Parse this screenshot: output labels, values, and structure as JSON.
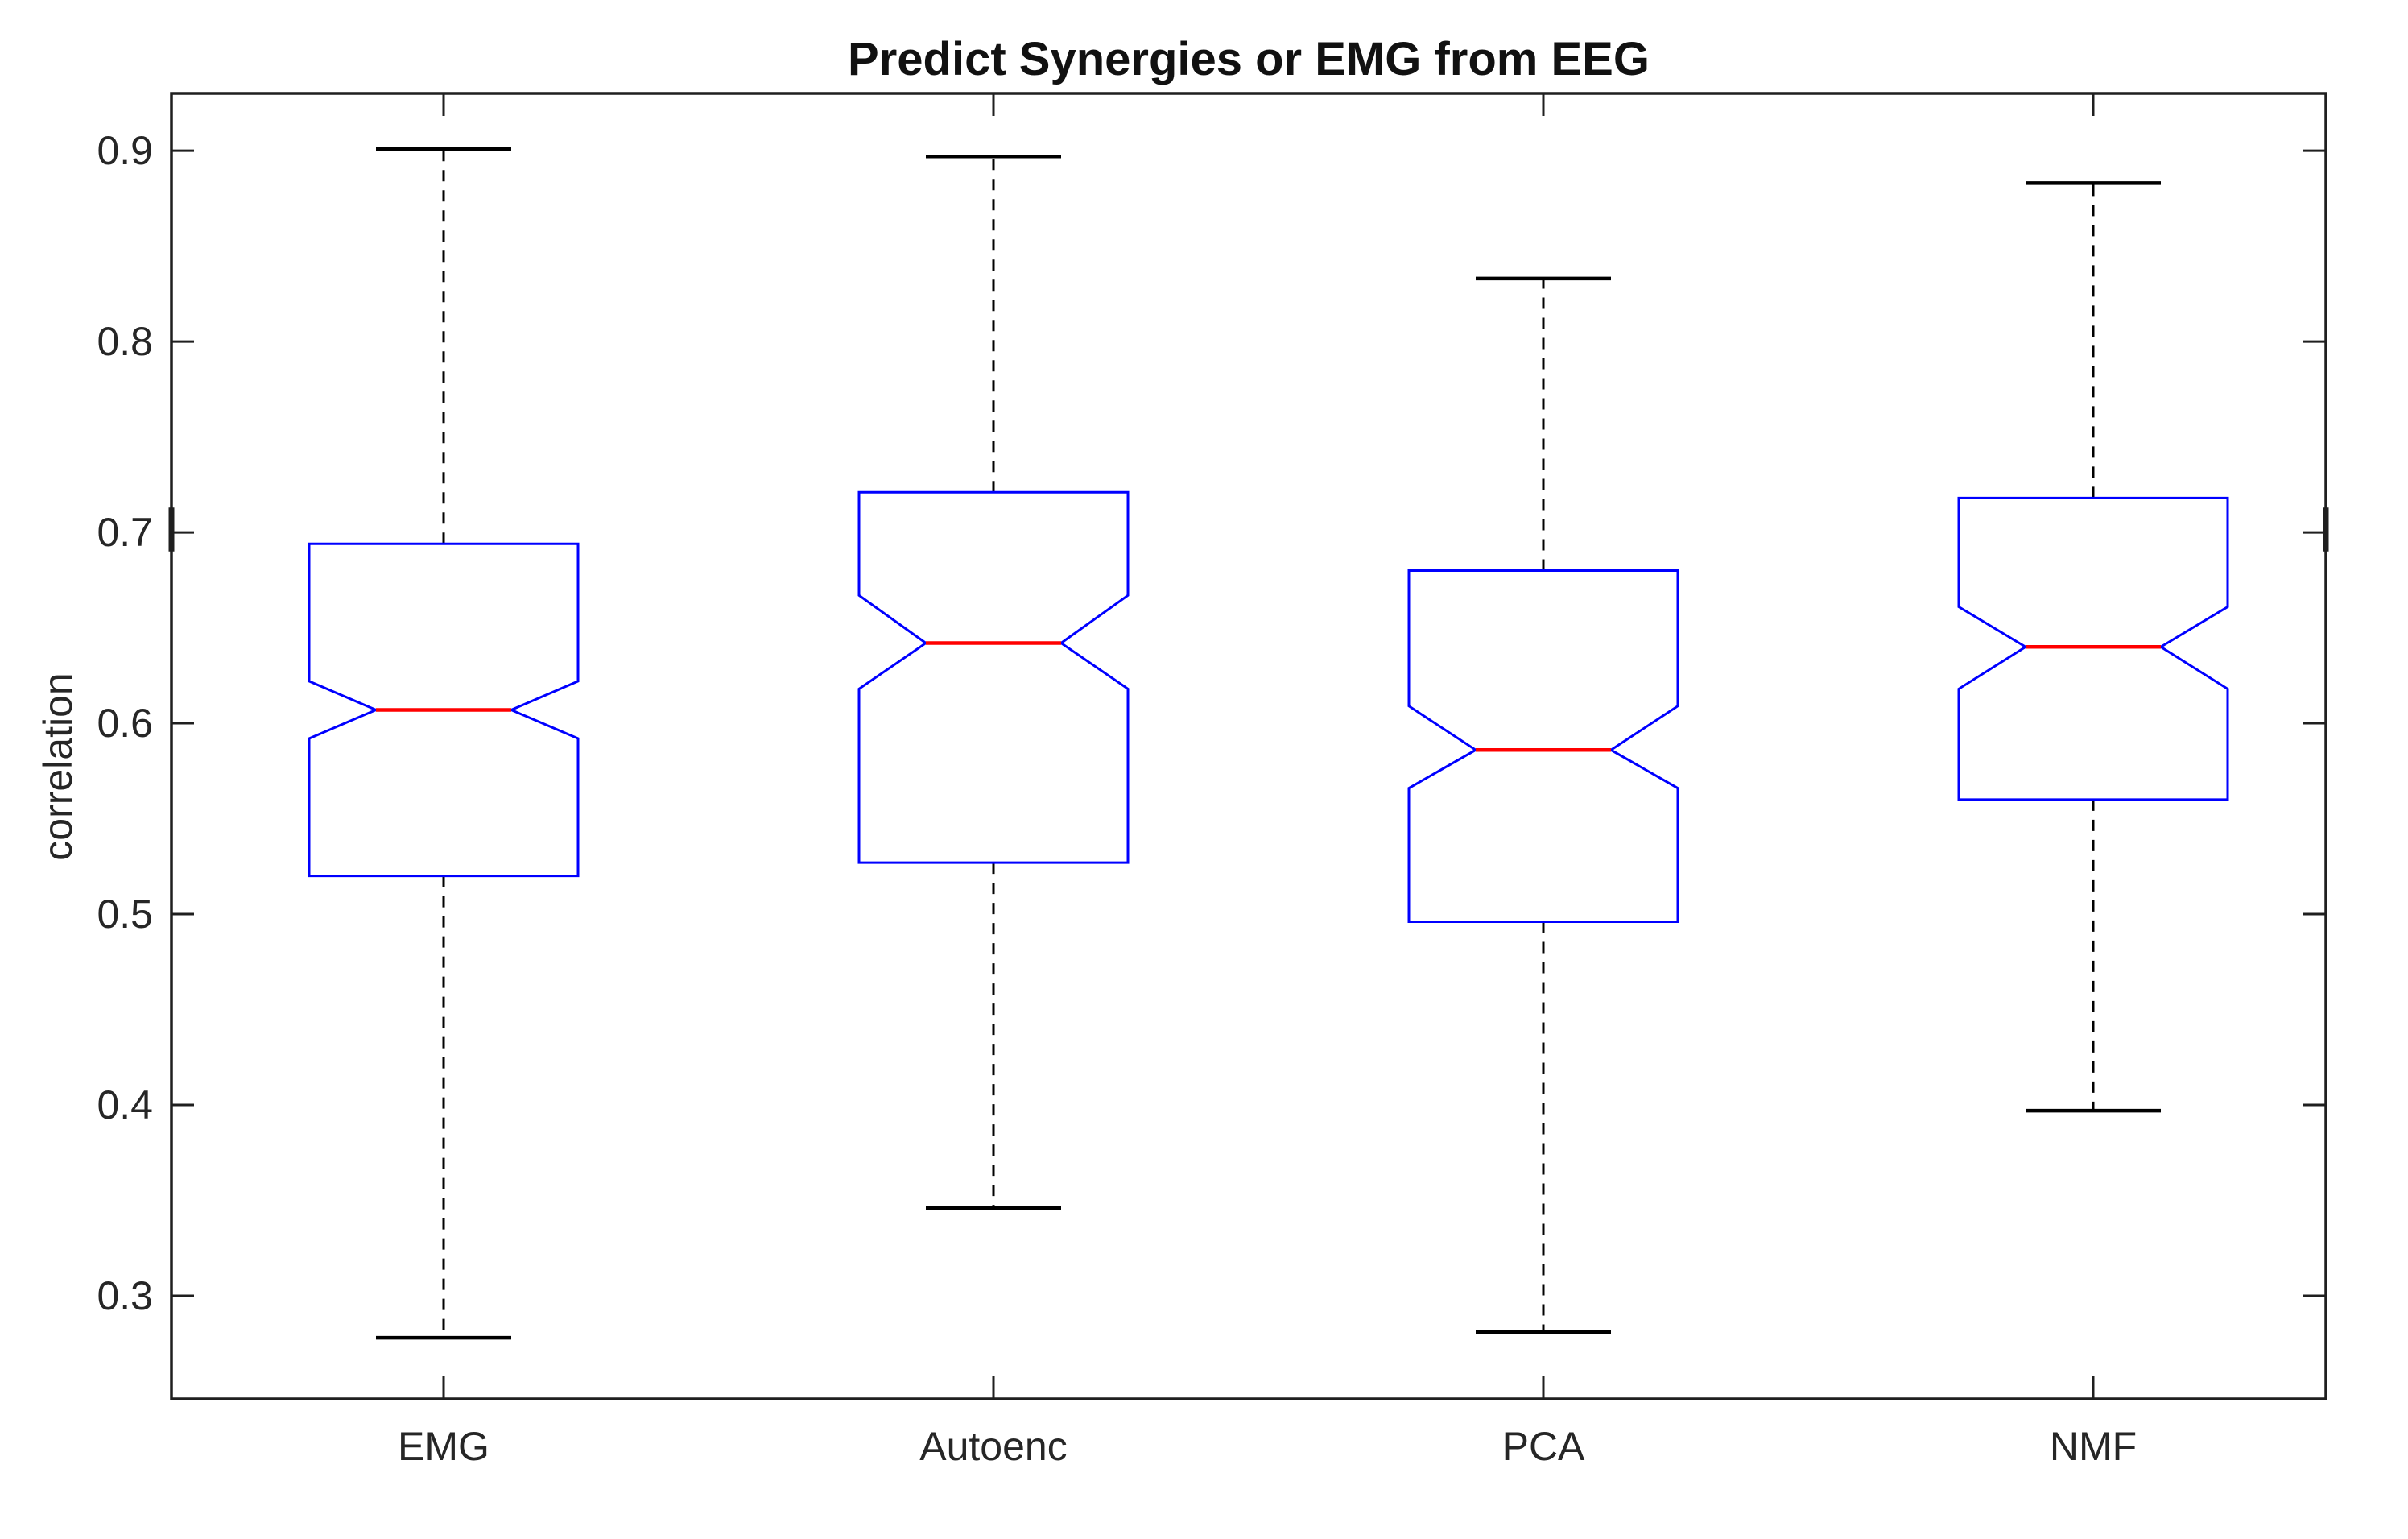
{
  "title": "Predict Synergies or EMG from EEG",
  "ylabel": "correlation",
  "chart_data": {
    "type": "boxplot",
    "notched": true,
    "categories": [
      "EMG",
      "Autoenc",
      "PCA",
      "NMF"
    ],
    "ylabel": "correlation",
    "title": "Predict Synergies or EMG from EEG",
    "ylim": [
      0.246,
      0.93
    ],
    "yticks": [
      0.3,
      0.4,
      0.5,
      0.6,
      0.7,
      0.8,
      0.9
    ],
    "ytick_labels": [
      "0.3",
      "0.4",
      "0.5",
      "0.6",
      "0.7",
      "0.8",
      "0.9"
    ],
    "grid": false,
    "legend": "none",
    "series": [
      {
        "name": "EMG",
        "whisker_low": 0.278,
        "q1": 0.52,
        "notch_low": 0.592,
        "median": 0.607,
        "notch_high": 0.622,
        "q3": 0.694,
        "whisker_high": 0.901
      },
      {
        "name": "Autoenc",
        "whisker_low": 0.346,
        "q1": 0.527,
        "notch_low": 0.618,
        "median": 0.642,
        "notch_high": 0.667,
        "q3": 0.721,
        "whisker_high": 0.897
      },
      {
        "name": "PCA",
        "whisker_low": 0.281,
        "q1": 0.496,
        "notch_low": 0.566,
        "median": 0.586,
        "notch_high": 0.609,
        "q3": 0.68,
        "whisker_high": 0.833
      },
      {
        "name": "NMF",
        "whisker_low": 0.397,
        "q1": 0.56,
        "notch_low": 0.618,
        "median": 0.64,
        "notch_high": 0.661,
        "q3": 0.718,
        "whisker_high": 0.883
      }
    ],
    "colors": {
      "box": "#0000ff",
      "median": "#ff0000",
      "whisker": "#000000",
      "cap": "#000000",
      "axis": "#1f1f1f",
      "text": "#262626",
      "background": "#ffffff"
    },
    "axis_artifact_marks": {
      "value_low": 0.69,
      "value_high": 0.713,
      "sides": [
        "left",
        "right"
      ]
    }
  }
}
